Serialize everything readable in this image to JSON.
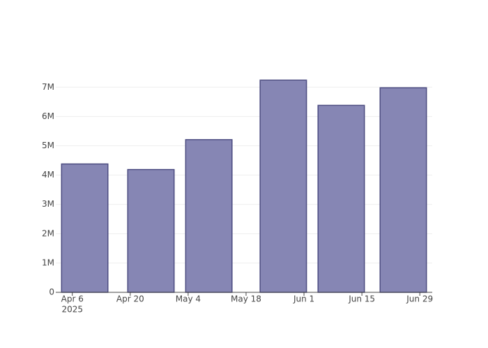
{
  "chart_data": {
    "type": "bar",
    "x": [
      "2025-04-09",
      "2025-04-25",
      "2025-05-09",
      "2025-05-27",
      "2025-06-10",
      "2025-06-25"
    ],
    "values": [
      4380000,
      4190000,
      5210000,
      7240000,
      6380000,
      6980000
    ],
    "color": "#7f7fb0",
    "edge_color": "#4b4b80",
    "xlim": [
      "2025-04-02",
      "2025-07-02"
    ],
    "xticks": [
      {
        "value": "2025-04-06",
        "label": "Apr 6",
        "sublabel": "2025"
      },
      {
        "value": "2025-04-20",
        "label": "Apr 20"
      },
      {
        "value": "2025-05-04",
        "label": "May 4"
      },
      {
        "value": "2025-05-18",
        "label": "May 18"
      },
      {
        "value": "2025-06-01",
        "label": "Jun 1"
      },
      {
        "value": "2025-06-15",
        "label": "Jun 15"
      },
      {
        "value": "2025-06-29",
        "label": "Jun 29"
      }
    ],
    "ylim": [
      0,
      7600000
    ],
    "yticks": [
      0,
      {
        "value": 1000000,
        "label": "1M"
      },
      {
        "value": 2000000,
        "label": "2M"
      },
      {
        "value": 3000000,
        "label": "3M"
      },
      {
        "value": 4000000,
        "label": "4M"
      },
      {
        "value": 5000000,
        "label": "5M"
      },
      {
        "value": 6000000,
        "label": "6M"
      },
      {
        "value": 7000000,
        "label": "7M"
      }
    ],
    "grid": true
  }
}
